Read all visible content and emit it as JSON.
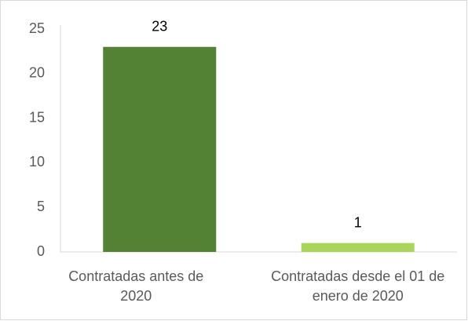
{
  "chart_data": {
    "type": "bar",
    "categories": [
      "Contratadas antes de 2020",
      "Contratadas desde el 01 de enero de 2020"
    ],
    "values": [
      23,
      1
    ],
    "colors": [
      "#548235",
      "#a9d65a"
    ],
    "ylim": [
      0,
      25
    ],
    "yticks": [
      0,
      5,
      10,
      15,
      20,
      25
    ],
    "grid": false
  }
}
